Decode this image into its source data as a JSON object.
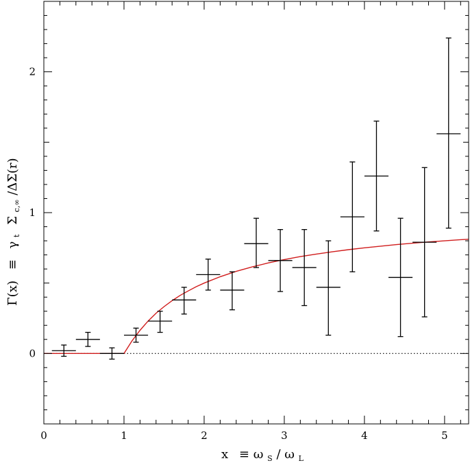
{
  "chart_data": {
    "type": "scatter",
    "title": "",
    "xlabel": "x ≡ω_S/ω_L",
    "ylabel": "Γ(x) ≡ γ_t Σ_c,∞/ΔΣ(r)",
    "xlabel_parts": {
      "x": "x",
      "equiv": "≡",
      "omega1": "ω",
      "sub1": "S",
      "slash": "/",
      "omega2": "ω",
      "sub2": "L"
    },
    "ylabel_parts": {
      "gamma_x": "Γ(x)",
      "equiv": "≡",
      "gamma": "γ",
      "sub_t": "t",
      "sigma": "Σ",
      "sub_c": "c,∞",
      "rest": "/ΔΣ(r)"
    },
    "xlim": [
      0,
      5.3
    ],
    "ylim": [
      -0.5,
      2.5
    ],
    "x_ticks": [
      "0",
      "1",
      "2",
      "3",
      "4",
      "5"
    ],
    "y_ticks": [
      "0",
      "1",
      "2"
    ],
    "grid": false,
    "reference_line": {
      "y": 0,
      "style": "dotted",
      "color": "#000000"
    },
    "series": [
      {
        "type": "errorbar",
        "color": "#000000",
        "points": [
          {
            "x": 0.25,
            "x_lo": 0.1,
            "x_hi": 0.4,
            "y": 0.02,
            "y_lo": -0.02,
            "y_hi": 0.06
          },
          {
            "x": 0.55,
            "x_lo": 0.4,
            "x_hi": 0.7,
            "y": 0.1,
            "y_lo": 0.05,
            "y_hi": 0.15
          },
          {
            "x": 0.85,
            "x_lo": 0.7,
            "x_hi": 1.0,
            "y": 0.0,
            "y_lo": -0.04,
            "y_hi": 0.04
          },
          {
            "x": 1.15,
            "x_lo": 1.0,
            "x_hi": 1.3,
            "y": 0.13,
            "y_lo": 0.08,
            "y_hi": 0.18
          },
          {
            "x": 1.45,
            "x_lo": 1.3,
            "x_hi": 1.6,
            "y": 0.23,
            "y_lo": 0.15,
            "y_hi": 0.3
          },
          {
            "x": 1.75,
            "x_lo": 1.6,
            "x_hi": 1.9,
            "y": 0.38,
            "y_lo": 0.28,
            "y_hi": 0.47
          },
          {
            "x": 2.05,
            "x_lo": 1.9,
            "x_hi": 2.2,
            "y": 0.56,
            "y_lo": 0.45,
            "y_hi": 0.67
          },
          {
            "x": 2.35,
            "x_lo": 2.2,
            "x_hi": 2.5,
            "y": 0.45,
            "y_lo": 0.31,
            "y_hi": 0.58
          },
          {
            "x": 2.65,
            "x_lo": 2.5,
            "x_hi": 2.8,
            "y": 0.78,
            "y_lo": 0.61,
            "y_hi": 0.96
          },
          {
            "x": 2.95,
            "x_lo": 2.8,
            "x_hi": 3.1,
            "y": 0.66,
            "y_lo": 0.44,
            "y_hi": 0.88
          },
          {
            "x": 3.25,
            "x_lo": 3.1,
            "x_hi": 3.4,
            "y": 0.61,
            "y_lo": 0.34,
            "y_hi": 0.88
          },
          {
            "x": 3.55,
            "x_lo": 3.4,
            "x_hi": 3.7,
            "y": 0.47,
            "y_lo": 0.13,
            "y_hi": 0.8
          },
          {
            "x": 3.85,
            "x_lo": 3.7,
            "x_hi": 4.0,
            "y": 0.97,
            "y_lo": 0.58,
            "y_hi": 1.36
          },
          {
            "x": 4.15,
            "x_lo": 4.0,
            "x_hi": 4.3,
            "y": 1.26,
            "y_lo": 0.87,
            "y_hi": 1.65
          },
          {
            "x": 4.45,
            "x_lo": 4.3,
            "x_hi": 4.6,
            "y": 0.54,
            "y_lo": 0.12,
            "y_hi": 0.96
          },
          {
            "x": 4.75,
            "x_lo": 4.6,
            "x_hi": 4.9,
            "y": 0.79,
            "y_lo": 0.26,
            "y_hi": 1.32
          },
          {
            "x": 5.05,
            "x_lo": 4.9,
            "x_hi": 5.2,
            "y": 1.56,
            "y_lo": 0.89,
            "y_hi": 2.24
          }
        ]
      },
      {
        "type": "line",
        "color": "#d01c1c",
        "x": [
          0,
          1.0,
          1.1,
          1.2,
          1.3,
          1.4,
          1.5,
          1.6,
          1.7,
          1.8,
          1.9,
          2.0,
          2.2,
          2.4,
          2.6,
          2.8,
          3.0,
          3.2,
          3.4,
          3.6,
          3.8,
          4.0,
          4.2,
          4.4,
          4.6,
          4.8,
          5.0,
          5.2,
          5.3
        ],
        "y": [
          0,
          0,
          0.09,
          0.165,
          0.23,
          0.286,
          0.333,
          0.375,
          0.412,
          0.444,
          0.474,
          0.5,
          0.545,
          0.583,
          0.615,
          0.643,
          0.667,
          0.688,
          0.706,
          0.722,
          0.737,
          0.75,
          0.762,
          0.773,
          0.783,
          0.792,
          0.8,
          0.808,
          0.811
        ]
      }
    ]
  }
}
